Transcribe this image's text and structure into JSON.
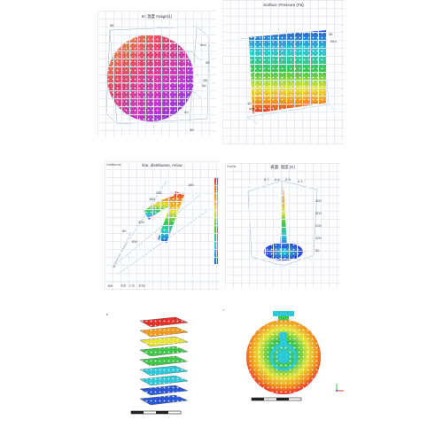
{
  "panels": {
    "p1": {
      "title": "In: 温度 Image(1)",
      "labels": [
        "58",
        "mm",
        "50",
        "-58",
        "5d",
        "50",
        "58"
      ]
    },
    "p2": {
      "title": "Surface: Pressure (Pa)",
      "labels": [
        "58",
        "mm",
        "10",
        "mm"
      ]
    },
    "p3": {
      "header": "Untitled ▸",
      "title": "line: distribution, Arrow",
      "labels": [
        "250",
        "160",
        "60",
        "200",
        "100",
        "180",
        "0"
      ],
      "bottom": [
        "ℓℓ8",
        "ℬℬ",
        "ℂℬ",
        "ℬℛℓ"
      ]
    },
    "p4": {
      "header": "Surf ▸",
      "title": "表面: 温度 (K)",
      "labels": [
        "0.7",
        "0.5",
        "0.3",
        "0.1",
        "400",
        "300",
        "200",
        "100",
        "50"
      ]
    },
    "p5": {
      "labels": [
        "n"
      ]
    },
    "p6": {
      "labels": [
        "•"
      ]
    }
  },
  "colors": {
    "red": "#e8302a",
    "orange": "#f39a1e",
    "yellow": "#e6e23a",
    "green": "#3fc64a",
    "cyan": "#2fc8d8",
    "blue": "#2a57d6",
    "purple": "#9a3ad8",
    "magenta": "#d83ad0"
  }
}
